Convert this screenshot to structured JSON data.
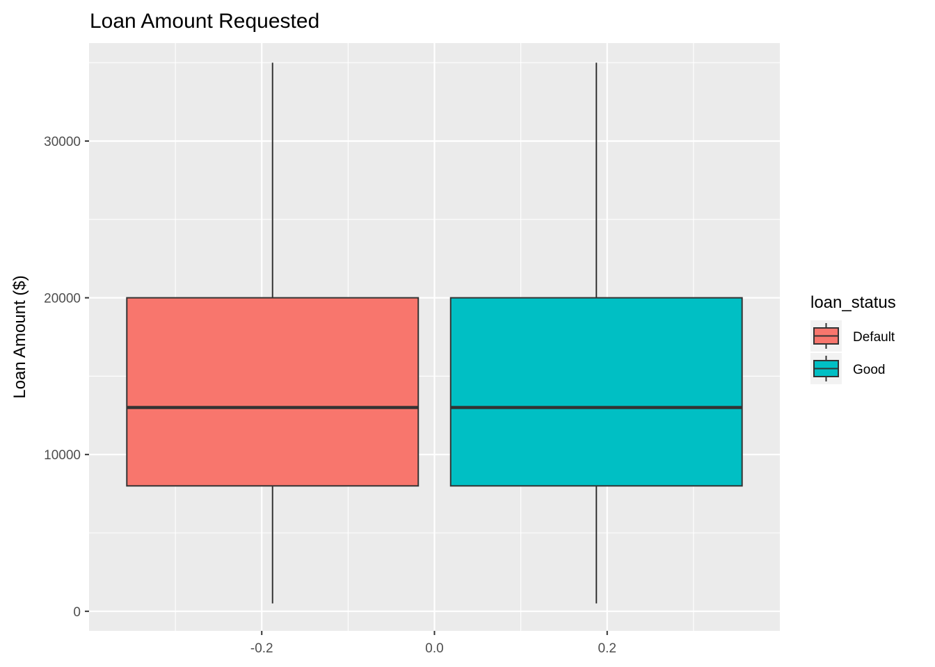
{
  "chart_data": {
    "type": "boxplot",
    "title": "Loan Amount Requested",
    "xlabel": "",
    "ylabel": "Loan Amount ($)",
    "xlim": [
      -0.4,
      0.4
    ],
    "ylim": [
      -1250,
      36250
    ],
    "x_ticks": [
      -0.2,
      0.0,
      0.2
    ],
    "x_tick_labels": [
      "-0.2",
      "0.0",
      "0.2"
    ],
    "y_ticks": [
      0,
      10000,
      20000,
      30000
    ],
    "y_tick_labels": [
      "0",
      "10000",
      "20000",
      "30000"
    ],
    "grid": true,
    "legend": {
      "title": "loan_status",
      "position": "right"
    },
    "series": [
      {
        "name": "Default",
        "color": "#F8766D",
        "x_center": -0.1875,
        "width": 0.3375,
        "min": 500,
        "q1": 8000,
        "median": 13000,
        "q3": 20000,
        "max": 35000
      },
      {
        "name": "Good",
        "color": "#00BFC4",
        "x_center": 0.1875,
        "width": 0.3375,
        "min": 500,
        "q1": 8000,
        "median": 13000,
        "q3": 20000,
        "max": 35000
      }
    ]
  }
}
